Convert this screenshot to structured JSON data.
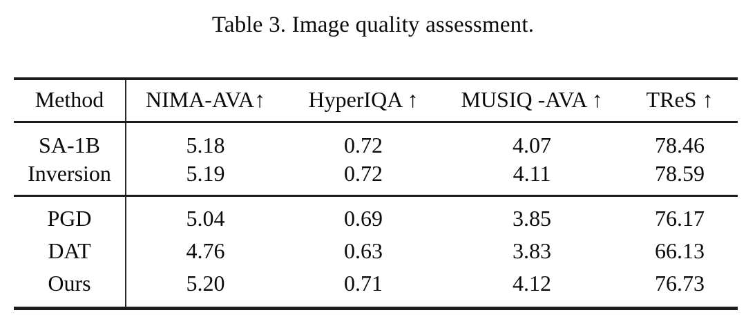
{
  "title": "Table 3. Image quality assessment.",
  "table": {
    "columns": [
      "Method",
      "NIMA-AVA↑",
      "HyperIQA ↑",
      "MUSIQ -AVA ↑",
      "TReS ↑"
    ],
    "sections": [
      {
        "rows": [
          {
            "method": "SA-1B",
            "values": [
              "5.18",
              "0.72",
              "4.07",
              "78.46"
            ]
          },
          {
            "method": "Inversion",
            "values": [
              "5.19",
              "0.72",
              "4.11",
              "78.59"
            ]
          }
        ]
      },
      {
        "rows": [
          {
            "method": "PGD",
            "values": [
              "5.04",
              "0.69",
              "3.85",
              "76.17"
            ]
          },
          {
            "method": "DAT",
            "values": [
              "4.76",
              "0.63",
              "3.83",
              "66.13"
            ]
          },
          {
            "method": "Ours",
            "values": [
              "5.20",
              "0.71",
              "4.12",
              "76.73"
            ]
          }
        ]
      }
    ]
  },
  "colors": {
    "text": "#0b0b0b",
    "rule": "#1c1c1c",
    "background": "#ffffff"
  }
}
